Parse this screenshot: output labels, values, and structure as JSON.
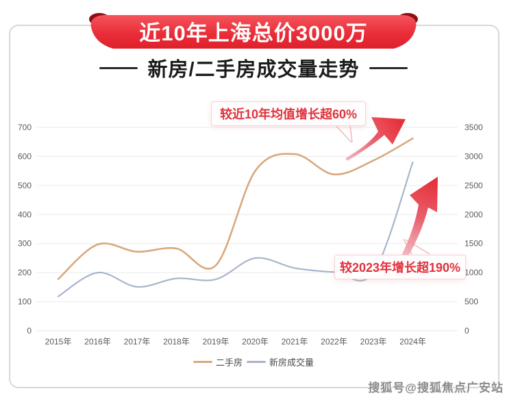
{
  "header": {
    "banner_title": "近10年上海总价3000万",
    "subtitle": "新房/二手房成交量走势"
  },
  "annotations": [
    {
      "text": "较近10年均值增长超60%",
      "target_series": "二手房"
    },
    {
      "text": "较2023年增长超190%",
      "target_series": "新房成交量"
    }
  ],
  "legend": [
    {
      "label": "二手房",
      "color": "#d8a87c"
    },
    {
      "label": "新房成交量",
      "color": "#a7b4cc"
    }
  ],
  "footer": {
    "watermark": "搜狐号@搜狐焦点广安站"
  },
  "colors": {
    "banner_red": "#e8232e",
    "banner_red_light": "#f4545c",
    "ribbon_fold": "#8c0f16",
    "annotation_red": "#e0313c",
    "arrow_red": "#e6303a",
    "arrow_pink": "#eeafba",
    "grid": "#eaeaea",
    "axis_text": "#595959",
    "frame_border": "#d7d7d7",
    "subtitle_text": "#1b1b1b",
    "watermark_gray": "#8b8b8b"
  },
  "chart_data": {
    "type": "line",
    "title": "近10年上海总价3000万 新房/二手房成交量走势",
    "categories": [
      "2015年",
      "2016年",
      "2017年",
      "2018年",
      "2019年",
      "2020年",
      "2021年",
      "2022年",
      "2023年",
      "2024年"
    ],
    "series": [
      {
        "name": "二手房",
        "axis": "left",
        "color": "#d8a87c",
        "values": [
          178,
          297,
          272,
          283,
          225,
          550,
          608,
          538,
          586,
          662
        ]
      },
      {
        "name": "新房成交量",
        "axis": "right",
        "color": "#a7b4cc",
        "values": [
          590,
          1000,
          755,
          900,
          885,
          1250,
          1080,
          1010,
          1000,
          2900
        ]
      }
    ],
    "left_axis": {
      "min": 0,
      "max": 700,
      "step": 100
    },
    "right_axis": {
      "min": 0,
      "max": 3500,
      "step": 500
    },
    "grid": true,
    "legend_position": "bottom",
    "smooth": true
  }
}
